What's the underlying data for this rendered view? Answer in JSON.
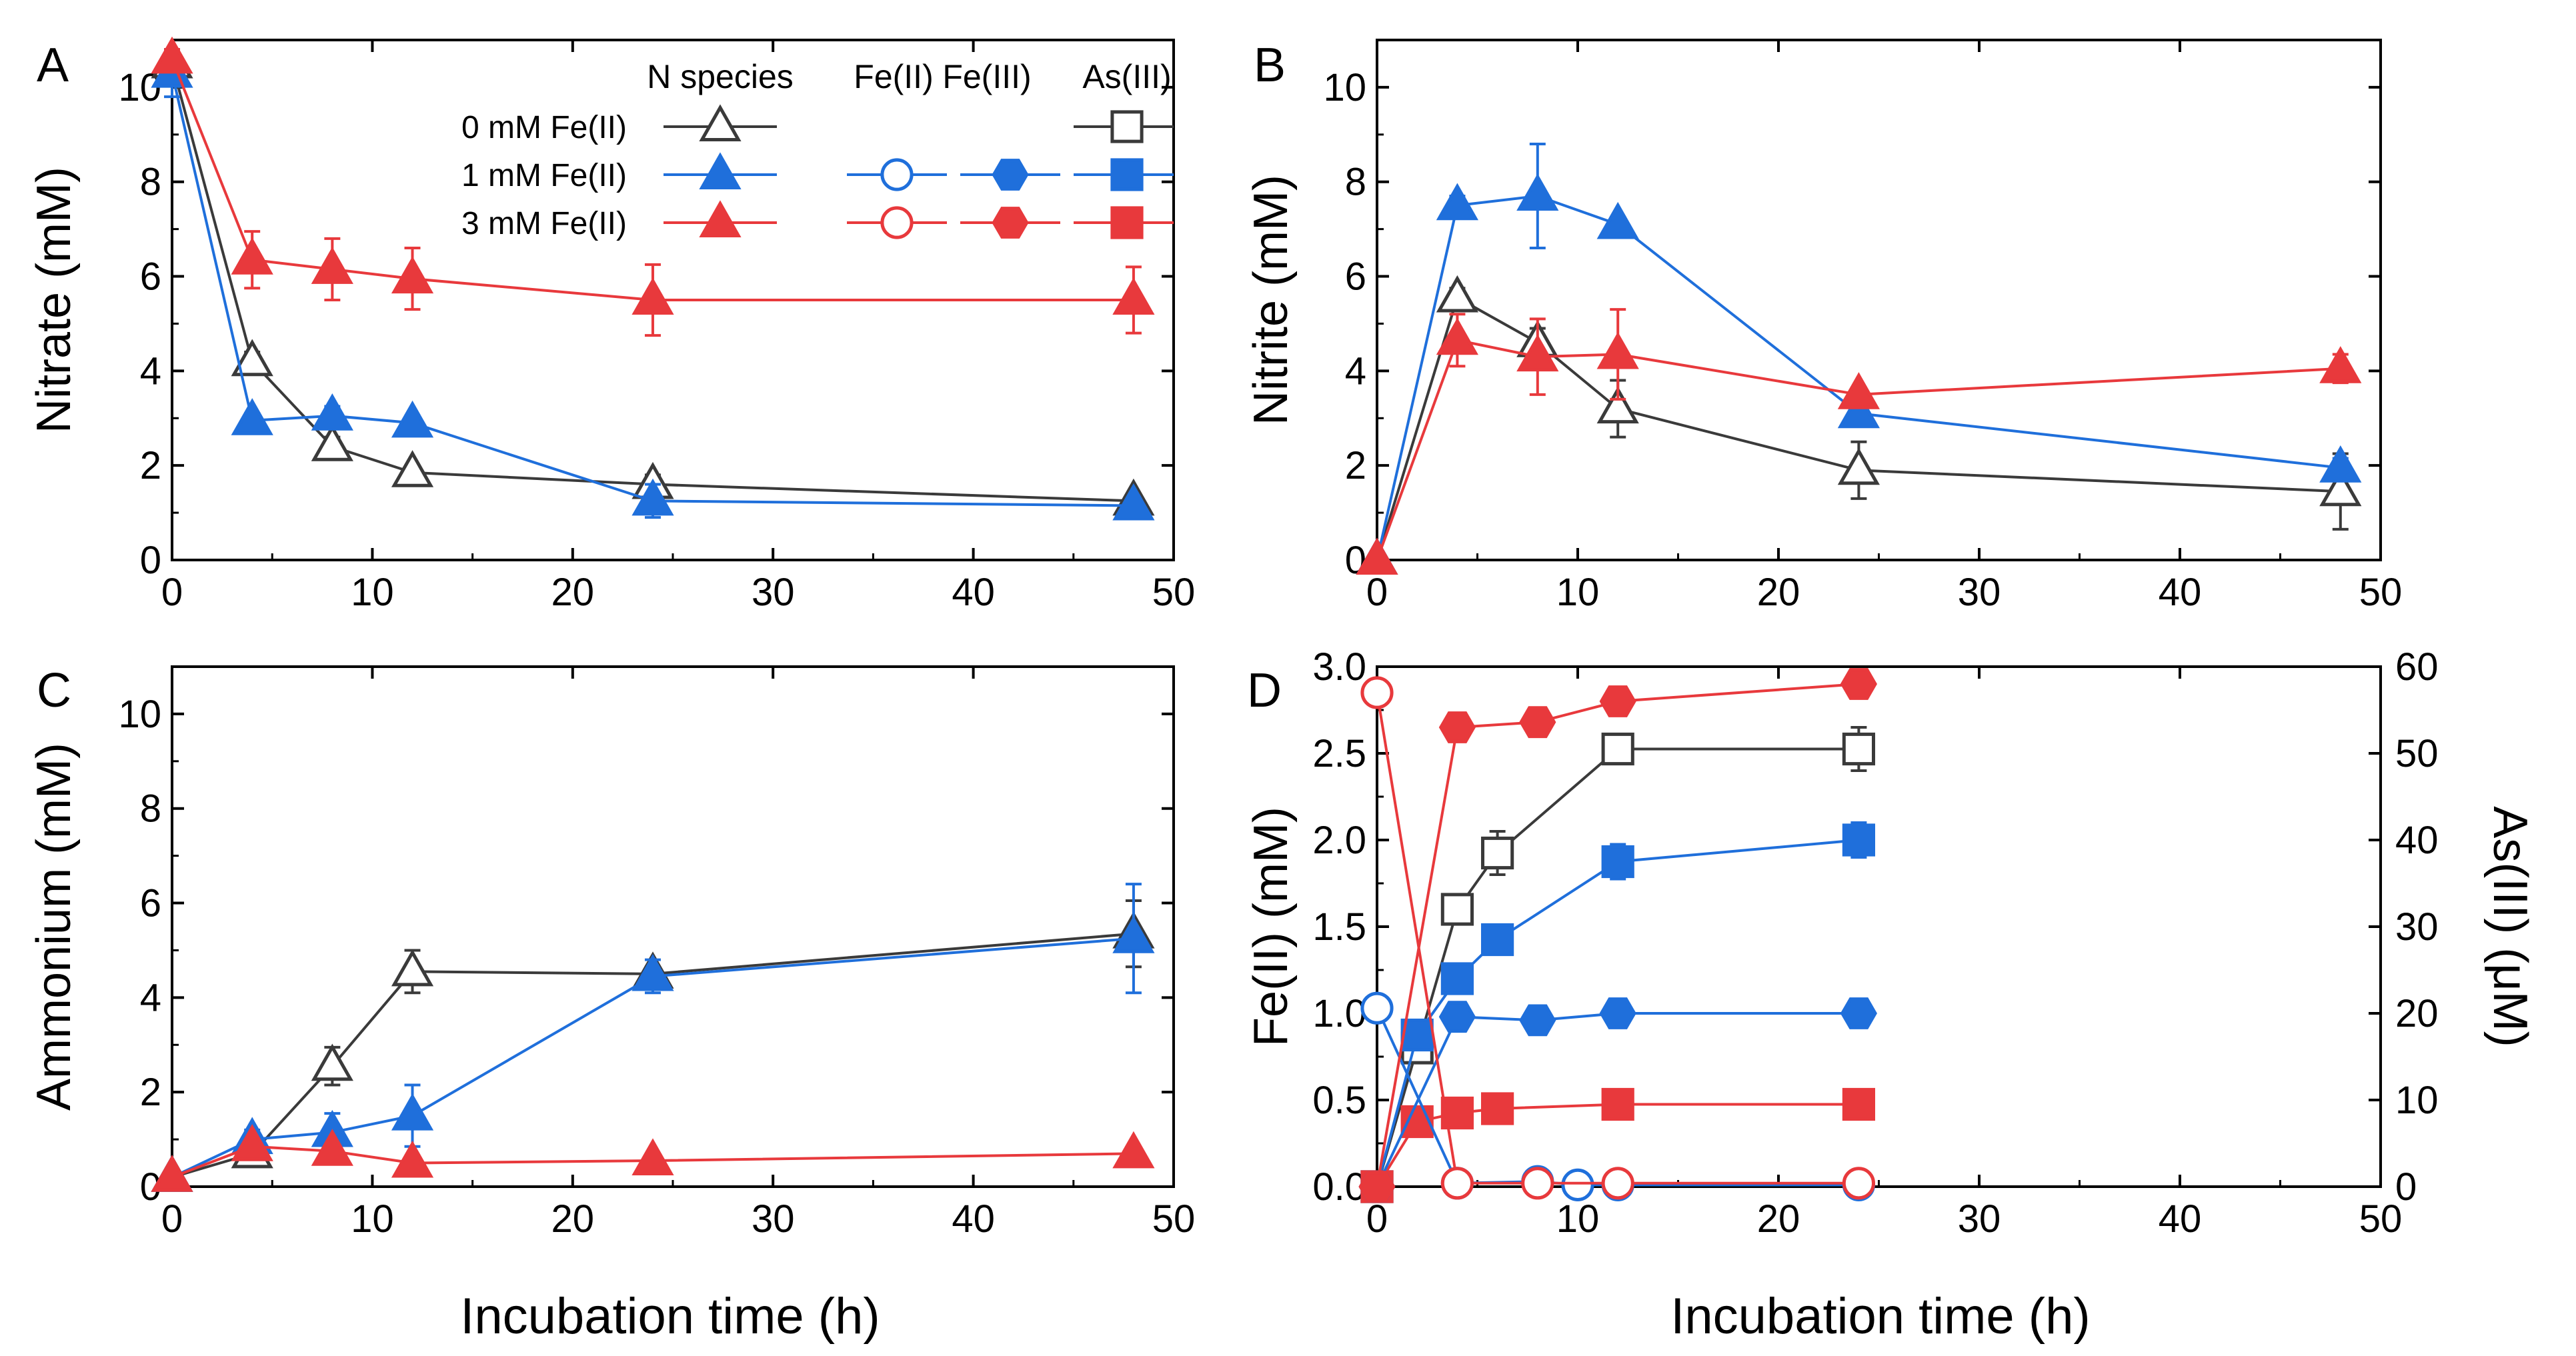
{
  "colors": {
    "black": "#3a3a3a",
    "blue": "#1f6fdb",
    "red": "#e8393c"
  },
  "xlabel": "Incubation time (h)",
  "legend": {
    "headers": [
      "N species",
      "Fe(II)",
      "Fe(III)",
      "As(III)"
    ],
    "rows": [
      "0 mM Fe(II)",
      "1 mM Fe(II)",
      "3 mM Fe(II)"
    ]
  },
  "chart_data": [
    {
      "panel": "A",
      "type": "line",
      "ylabel": "Nitrate (mM)",
      "xlim": [
        0,
        50
      ],
      "ylim": [
        0,
        11
      ],
      "xticks": [
        0,
        10,
        20,
        30,
        40,
        50
      ],
      "yticks": [
        0,
        2,
        4,
        6,
        8,
        10
      ],
      "series": [
        {
          "name": "0 mM Fe(II)",
          "color": "#3a3a3a",
          "marker": "triangle",
          "fill": false,
          "x": [
            0,
            4,
            8,
            12,
            24,
            48
          ],
          "y": [
            10.5,
            4.2,
            2.4,
            1.85,
            1.6,
            1.25
          ],
          "err": [
            0.25,
            0.2,
            0.2,
            0.15,
            0.2,
            0.1
          ]
        },
        {
          "name": "1 mM Fe(II)",
          "color": "#1f6fdb",
          "marker": "triangle",
          "fill": true,
          "x": [
            0,
            4,
            8,
            12,
            24,
            48
          ],
          "y": [
            10.3,
            2.95,
            3.05,
            2.9,
            1.25,
            1.15
          ],
          "err": [
            0.5,
            0.15,
            0.2,
            0.15,
            0.35,
            0.1
          ]
        },
        {
          "name": "3 mM Fe(II)",
          "color": "#e8393c",
          "marker": "triangle",
          "fill": true,
          "x": [
            0,
            4,
            8,
            12,
            24,
            48
          ],
          "y": [
            10.6,
            6.35,
            6.15,
            5.95,
            5.5,
            5.5
          ],
          "err": [
            0.2,
            0.6,
            0.65,
            0.65,
            0.75,
            0.7
          ]
        }
      ]
    },
    {
      "panel": "B",
      "type": "line",
      "ylabel": "Nitrite (mM)",
      "xlim": [
        0,
        50
      ],
      "ylim": [
        0,
        11
      ],
      "xticks": [
        0,
        10,
        20,
        30,
        40,
        50
      ],
      "yticks": [
        0,
        2,
        4,
        6,
        8,
        10
      ],
      "series": [
        {
          "name": "0 mM Fe(II)",
          "color": "#3a3a3a",
          "marker": "triangle",
          "fill": false,
          "x": [
            0,
            4,
            8,
            12,
            24,
            48
          ],
          "y": [
            0,
            5.55,
            4.6,
            3.2,
            1.9,
            1.45
          ],
          "err": [
            0,
            0.2,
            0.3,
            0.6,
            0.6,
            0.8
          ]
        },
        {
          "name": "1 mM Fe(II)",
          "color": "#1f6fdb",
          "marker": "triangle",
          "fill": true,
          "x": [
            0,
            4,
            8,
            12,
            24,
            48
          ],
          "y": [
            0,
            7.5,
            7.7,
            7.1,
            3.1,
            1.95
          ],
          "err": [
            0,
            0.2,
            1.1,
            0.15,
            0.2,
            0.2
          ]
        },
        {
          "name": "3 mM Fe(II)",
          "color": "#e8393c",
          "marker": "triangle",
          "fill": true,
          "x": [
            0,
            4,
            8,
            12,
            24,
            48
          ],
          "y": [
            0,
            4.65,
            4.3,
            4.35,
            3.5,
            4.05
          ],
          "err": [
            0,
            0.55,
            0.8,
            0.95,
            0.15,
            0.3
          ]
        }
      ]
    },
    {
      "panel": "C",
      "type": "line",
      "ylabel": "Ammonium (mM)",
      "xlim": [
        0,
        50
      ],
      "ylim": [
        0,
        11
      ],
      "xticks": [
        0,
        10,
        20,
        30,
        40,
        50
      ],
      "yticks": [
        0,
        2,
        4,
        6,
        8,
        10
      ],
      "series": [
        {
          "name": "0 mM Fe(II)",
          "color": "#3a3a3a",
          "marker": "triangle",
          "fill": false,
          "x": [
            0,
            4,
            8,
            12,
            24,
            48
          ],
          "y": [
            0.2,
            0.7,
            2.55,
            4.55,
            4.5,
            5.35
          ],
          "err": [
            0.05,
            0.15,
            0.4,
            0.45,
            0.15,
            0.7
          ]
        },
        {
          "name": "1 mM Fe(II)",
          "color": "#1f6fdb",
          "marker": "triangle",
          "fill": true,
          "x": [
            0,
            4,
            8,
            12,
            24,
            48
          ],
          "y": [
            0.2,
            1.0,
            1.15,
            1.5,
            4.45,
            5.25
          ],
          "err": [
            0.05,
            0.2,
            0.4,
            0.65,
            0.35,
            1.15
          ]
        },
        {
          "name": "3 mM Fe(II)",
          "color": "#e8393c",
          "marker": "triangle",
          "fill": true,
          "x": [
            0,
            4,
            8,
            12,
            24,
            48
          ],
          "y": [
            0.2,
            0.85,
            0.75,
            0.5,
            0.55,
            0.7
          ],
          "err": [
            0.05,
            0.1,
            0.1,
            0.1,
            0.1,
            0.1
          ]
        }
      ]
    },
    {
      "panel": "D",
      "type": "line",
      "ylabel": "Fe(II) (mM)",
      "ylabel_right": "As(III) (μM)",
      "xlim": [
        0,
        50
      ],
      "ylim": [
        0,
        3
      ],
      "ylim_right": [
        0,
        60
      ],
      "xticks": [
        0,
        10,
        20,
        30,
        40,
        50
      ],
      "yticks": [
        "0.0",
        "0.5",
        "1.0",
        "1.5",
        "2.0",
        "2.5",
        "3.0"
      ],
      "yticks_right": [
        0,
        10,
        20,
        30,
        40,
        50,
        60
      ],
      "series": [
        {
          "name": "0 mM Fe(II) As(III)",
          "axis": "right",
          "color": "#3a3a3a",
          "marker": "square",
          "fill": false,
          "x": [
            0,
            2,
            4,
            6,
            12,
            24
          ],
          "y": [
            0,
            16,
            32,
            38.5,
            50.5,
            50.5
          ],
          "err": [
            0,
            1.5,
            1.5,
            2.5,
            1.5,
            2.5
          ]
        },
        {
          "name": "1 mM Fe(II) As(III)",
          "axis": "right",
          "color": "#1f6fdb",
          "marker": "square",
          "fill": true,
          "x": [
            0,
            2,
            4,
            6,
            12,
            24
          ],
          "y": [
            0,
            17.5,
            24,
            28.5,
            37.5,
            40
          ],
          "err": [
            0,
            1,
            1,
            1,
            2,
            2
          ]
        },
        {
          "name": "3 mM Fe(II) As(III)",
          "axis": "right",
          "color": "#e8393c",
          "marker": "square",
          "fill": true,
          "x": [
            0,
            2,
            4,
            6,
            12,
            24
          ],
          "y": [
            0,
            7.5,
            8.5,
            9,
            9.5,
            9.5
          ],
          "err": [
            0,
            0.5,
            0.5,
            1,
            1.5,
            0.5
          ]
        },
        {
          "name": "1 mM Fe(II) Fe(II)",
          "axis": "left",
          "color": "#1f6fdb",
          "marker": "circle",
          "fill": false,
          "x": [
            0,
            4,
            8,
            10,
            12,
            24
          ],
          "y": [
            1.03,
            0.02,
            0.03,
            0.01,
            0.01,
            0.01
          ],
          "err": [
            0.03,
            0,
            0,
            0,
            0,
            0
          ]
        },
        {
          "name": "1 mM Fe(II) Fe(III)",
          "axis": "left",
          "color": "#1f6fdb",
          "marker": "hexagon",
          "fill": true,
          "x": [
            0,
            4,
            8,
            12,
            24
          ],
          "y": [
            0,
            0.98,
            0.96,
            1.0,
            1.0
          ],
          "err": [
            0,
            0.02,
            0.02,
            0.02,
            0.02
          ]
        },
        {
          "name": "3 mM Fe(II) Fe(II)",
          "axis": "left",
          "color": "#e8393c",
          "marker": "circle",
          "fill": false,
          "x": [
            0,
            4,
            8,
            12,
            24
          ],
          "y": [
            2.85,
            0.02,
            0.02,
            0.02,
            0.02
          ],
          "err": [
            0.05,
            0,
            0,
            0,
            0
          ]
        },
        {
          "name": "3 mM Fe(II) Fe(III)",
          "axis": "left",
          "color": "#e8393c",
          "marker": "hexagon",
          "fill": true,
          "x": [
            0,
            4,
            8,
            12,
            24
          ],
          "y": [
            0,
            2.65,
            2.68,
            2.8,
            2.9
          ],
          "err": [
            0,
            0.06,
            0.08,
            0.05,
            0.03
          ]
        }
      ]
    }
  ]
}
